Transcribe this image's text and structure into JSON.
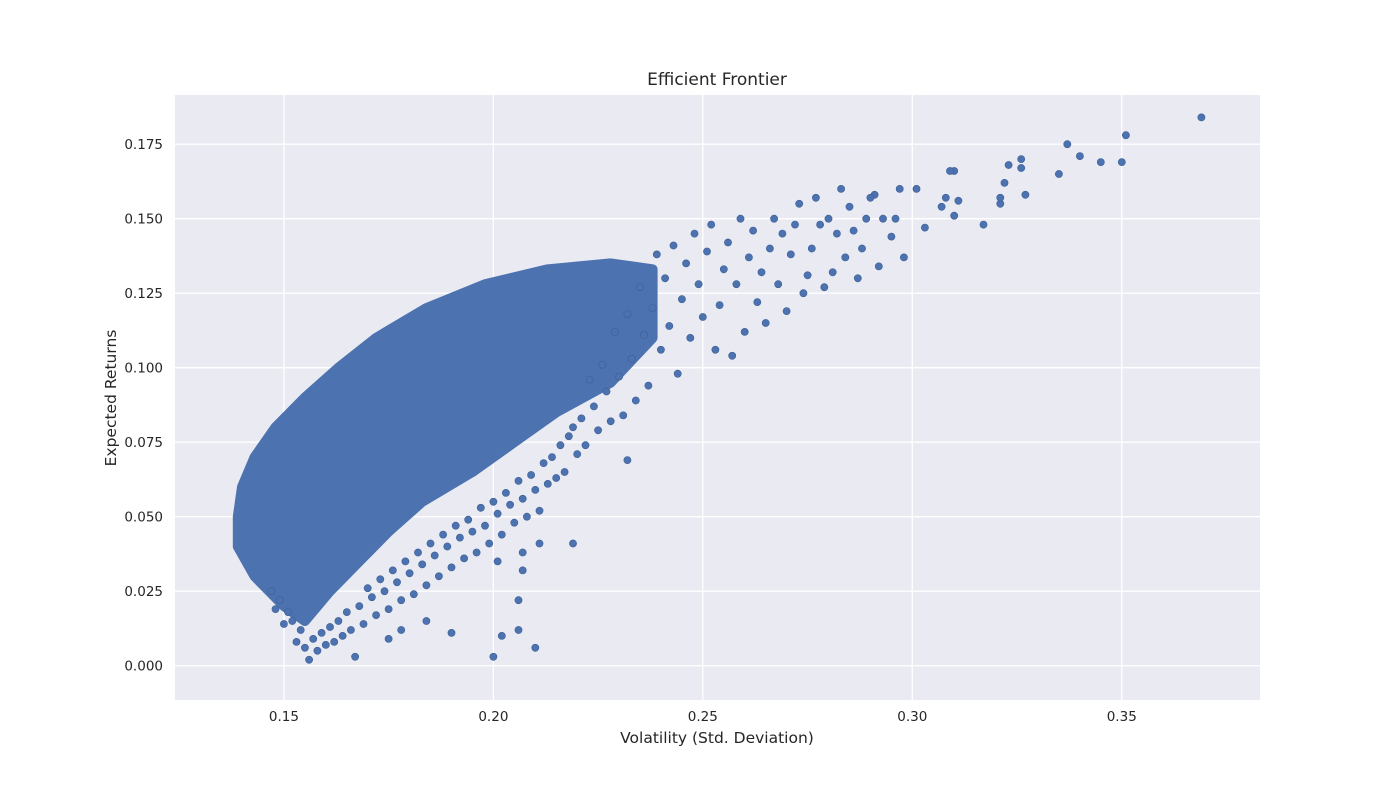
{
  "chart_data": {
    "type": "scatter",
    "title": "Efficient Frontier",
    "xlabel": "Volatility (Std. Deviation)",
    "ylabel": "Expected Returns",
    "xlim": [
      0.124,
      0.383
    ],
    "ylim": [
      -0.0115,
      0.1915
    ],
    "xticks": [
      0.15,
      0.2,
      0.25,
      0.3,
      0.35
    ],
    "xtick_labels": [
      "0.15",
      "0.20",
      "0.25",
      "0.30",
      "0.35"
    ],
    "yticks": [
      0.0,
      0.025,
      0.05,
      0.075,
      0.1,
      0.125,
      0.15,
      0.175
    ],
    "ytick_labels": [
      "0.000",
      "0.025",
      "0.050",
      "0.075",
      "0.100",
      "0.125",
      "0.150",
      "0.175"
    ],
    "grid": true,
    "legend": "none",
    "colors": {
      "points": "#4c72b0",
      "background": "#eaeaf2",
      "grid": "#ffffff"
    },
    "dense_cloud_envelope": {
      "upper": [
        [
          0.139,
          0.05
        ],
        [
          0.14,
          0.06
        ],
        [
          0.143,
          0.07
        ],
        [
          0.148,
          0.08
        ],
        [
          0.155,
          0.09
        ],
        [
          0.163,
          0.1
        ],
        [
          0.172,
          0.11
        ],
        [
          0.184,
          0.12
        ],
        [
          0.198,
          0.128
        ],
        [
          0.213,
          0.133
        ],
        [
          0.228,
          0.135
        ],
        [
          0.238,
          0.133
        ]
      ],
      "lower": [
        [
          0.238,
          0.11
        ],
        [
          0.228,
          0.095
        ],
        [
          0.215,
          0.085
        ],
        [
          0.205,
          0.075
        ],
        [
          0.195,
          0.065
        ],
        [
          0.183,
          0.055
        ],
        [
          0.175,
          0.045
        ],
        [
          0.168,
          0.035
        ],
        [
          0.161,
          0.025
        ],
        [
          0.155,
          0.015
        ],
        [
          0.15,
          0.02
        ],
        [
          0.143,
          0.03
        ],
        [
          0.139,
          0.04
        ]
      ]
    },
    "points": [
      [
        0.369,
        0.184
      ],
      [
        0.351,
        0.178
      ],
      [
        0.35,
        0.169
      ],
      [
        0.345,
        0.169
      ],
      [
        0.34,
        0.171
      ],
      [
        0.337,
        0.175
      ],
      [
        0.335,
        0.165
      ],
      [
        0.327,
        0.158
      ],
      [
        0.326,
        0.17
      ],
      [
        0.326,
        0.167
      ],
      [
        0.323,
        0.168
      ],
      [
        0.322,
        0.162
      ],
      [
        0.321,
        0.155
      ],
      [
        0.321,
        0.157
      ],
      [
        0.317,
        0.148
      ],
      [
        0.311,
        0.156
      ],
      [
        0.31,
        0.166
      ],
      [
        0.31,
        0.151
      ],
      [
        0.309,
        0.166
      ],
      [
        0.308,
        0.157
      ],
      [
        0.307,
        0.154
      ],
      [
        0.303,
        0.147
      ],
      [
        0.301,
        0.16
      ],
      [
        0.298,
        0.137
      ],
      [
        0.297,
        0.16
      ],
      [
        0.296,
        0.15
      ],
      [
        0.295,
        0.144
      ],
      [
        0.293,
        0.15
      ],
      [
        0.292,
        0.134
      ],
      [
        0.291,
        0.158
      ],
      [
        0.29,
        0.157
      ],
      [
        0.289,
        0.15
      ],
      [
        0.288,
        0.14
      ],
      [
        0.287,
        0.13
      ],
      [
        0.286,
        0.146
      ],
      [
        0.285,
        0.154
      ],
      [
        0.284,
        0.137
      ],
      [
        0.283,
        0.16
      ],
      [
        0.282,
        0.145
      ],
      [
        0.281,
        0.132
      ],
      [
        0.28,
        0.15
      ],
      [
        0.279,
        0.127
      ],
      [
        0.278,
        0.148
      ],
      [
        0.277,
        0.157
      ],
      [
        0.276,
        0.14
      ],
      [
        0.275,
        0.131
      ],
      [
        0.274,
        0.125
      ],
      [
        0.273,
        0.155
      ],
      [
        0.272,
        0.148
      ],
      [
        0.271,
        0.138
      ],
      [
        0.27,
        0.119
      ],
      [
        0.269,
        0.145
      ],
      [
        0.268,
        0.128
      ],
      [
        0.267,
        0.15
      ],
      [
        0.266,
        0.14
      ],
      [
        0.265,
        0.115
      ],
      [
        0.264,
        0.132
      ],
      [
        0.263,
        0.122
      ],
      [
        0.262,
        0.146
      ],
      [
        0.261,
        0.137
      ],
      [
        0.26,
        0.112
      ],
      [
        0.259,
        0.15
      ],
      [
        0.258,
        0.128
      ],
      [
        0.257,
        0.104
      ],
      [
        0.256,
        0.142
      ],
      [
        0.255,
        0.133
      ],
      [
        0.254,
        0.121
      ],
      [
        0.253,
        0.106
      ],
      [
        0.252,
        0.148
      ],
      [
        0.251,
        0.139
      ],
      [
        0.25,
        0.117
      ],
      [
        0.249,
        0.128
      ],
      [
        0.248,
        0.145
      ],
      [
        0.247,
        0.11
      ],
      [
        0.246,
        0.135
      ],
      [
        0.245,
        0.123
      ],
      [
        0.244,
        0.098
      ],
      [
        0.243,
        0.141
      ],
      [
        0.242,
        0.114
      ],
      [
        0.241,
        0.13
      ],
      [
        0.24,
        0.106
      ],
      [
        0.239,
        0.138
      ],
      [
        0.238,
        0.12
      ],
      [
        0.237,
        0.094
      ],
      [
        0.236,
        0.111
      ],
      [
        0.235,
        0.127
      ],
      [
        0.234,
        0.089
      ],
      [
        0.233,
        0.103
      ],
      [
        0.232,
        0.118
      ],
      [
        0.231,
        0.084
      ],
      [
        0.23,
        0.097
      ],
      [
        0.229,
        0.112
      ],
      [
        0.228,
        0.082
      ],
      [
        0.227,
        0.092
      ],
      [
        0.226,
        0.101
      ],
      [
        0.225,
        0.079
      ],
      [
        0.224,
        0.087
      ],
      [
        0.223,
        0.096
      ],
      [
        0.222,
        0.074
      ],
      [
        0.221,
        0.083
      ],
      [
        0.22,
        0.071
      ],
      [
        0.219,
        0.08
      ],
      [
        0.232,
        0.069
      ],
      [
        0.218,
        0.077
      ],
      [
        0.217,
        0.065
      ],
      [
        0.216,
        0.074
      ],
      [
        0.215,
        0.063
      ],
      [
        0.214,
        0.07
      ],
      [
        0.213,
        0.061
      ],
      [
        0.212,
        0.068
      ],
      [
        0.211,
        0.052
      ],
      [
        0.21,
        0.059
      ],
      [
        0.209,
        0.064
      ],
      [
        0.208,
        0.05
      ],
      [
        0.207,
        0.056
      ],
      [
        0.206,
        0.062
      ],
      [
        0.205,
        0.048
      ],
      [
        0.204,
        0.054
      ],
      [
        0.203,
        0.058
      ],
      [
        0.202,
        0.044
      ],
      [
        0.201,
        0.051
      ],
      [
        0.2,
        0.055
      ],
      [
        0.199,
        0.041
      ],
      [
        0.198,
        0.047
      ],
      [
        0.197,
        0.053
      ],
      [
        0.196,
        0.038
      ],
      [
        0.195,
        0.045
      ],
      [
        0.194,
        0.049
      ],
      [
        0.193,
        0.036
      ],
      [
        0.192,
        0.043
      ],
      [
        0.191,
        0.047
      ],
      [
        0.19,
        0.033
      ],
      [
        0.189,
        0.04
      ],
      [
        0.188,
        0.044
      ],
      [
        0.187,
        0.03
      ],
      [
        0.186,
        0.037
      ],
      [
        0.185,
        0.041
      ],
      [
        0.184,
        0.027
      ],
      [
        0.183,
        0.034
      ],
      [
        0.182,
        0.038
      ],
      [
        0.181,
        0.024
      ],
      [
        0.18,
        0.031
      ],
      [
        0.179,
        0.035
      ],
      [
        0.178,
        0.022
      ],
      [
        0.177,
        0.028
      ],
      [
        0.176,
        0.032
      ],
      [
        0.175,
        0.019
      ],
      [
        0.174,
        0.025
      ],
      [
        0.173,
        0.029
      ],
      [
        0.172,
        0.017
      ],
      [
        0.171,
        0.023
      ],
      [
        0.17,
        0.026
      ],
      [
        0.169,
        0.014
      ],
      [
        0.168,
        0.02
      ],
      [
        0.167,
        0.003
      ],
      [
        0.166,
        0.012
      ],
      [
        0.165,
        0.018
      ],
      [
        0.164,
        0.01
      ],
      [
        0.163,
        0.015
      ],
      [
        0.162,
        0.008
      ],
      [
        0.161,
        0.013
      ],
      [
        0.16,
        0.007
      ],
      [
        0.159,
        0.011
      ],
      [
        0.158,
        0.005
      ],
      [
        0.157,
        0.009
      ],
      [
        0.156,
        0.002
      ],
      [
        0.155,
        0.006
      ],
      [
        0.154,
        0.012
      ],
      [
        0.153,
        0.008
      ],
      [
        0.152,
        0.015
      ],
      [
        0.151,
        0.018
      ],
      [
        0.15,
        0.014
      ],
      [
        0.149,
        0.022
      ],
      [
        0.148,
        0.019
      ],
      [
        0.147,
        0.025
      ],
      [
        0.2,
        0.003
      ],
      [
        0.202,
        0.01
      ],
      [
        0.206,
        0.012
      ],
      [
        0.21,
        0.006
      ],
      [
        0.206,
        0.022
      ],
      [
        0.19,
        0.011
      ],
      [
        0.201,
        0.035
      ],
      [
        0.207,
        0.038
      ],
      [
        0.207,
        0.032
      ],
      [
        0.211,
        0.041
      ],
      [
        0.219,
        0.041
      ],
      [
        0.184,
        0.015
      ],
      [
        0.178,
        0.012
      ],
      [
        0.175,
        0.009
      ]
    ]
  }
}
